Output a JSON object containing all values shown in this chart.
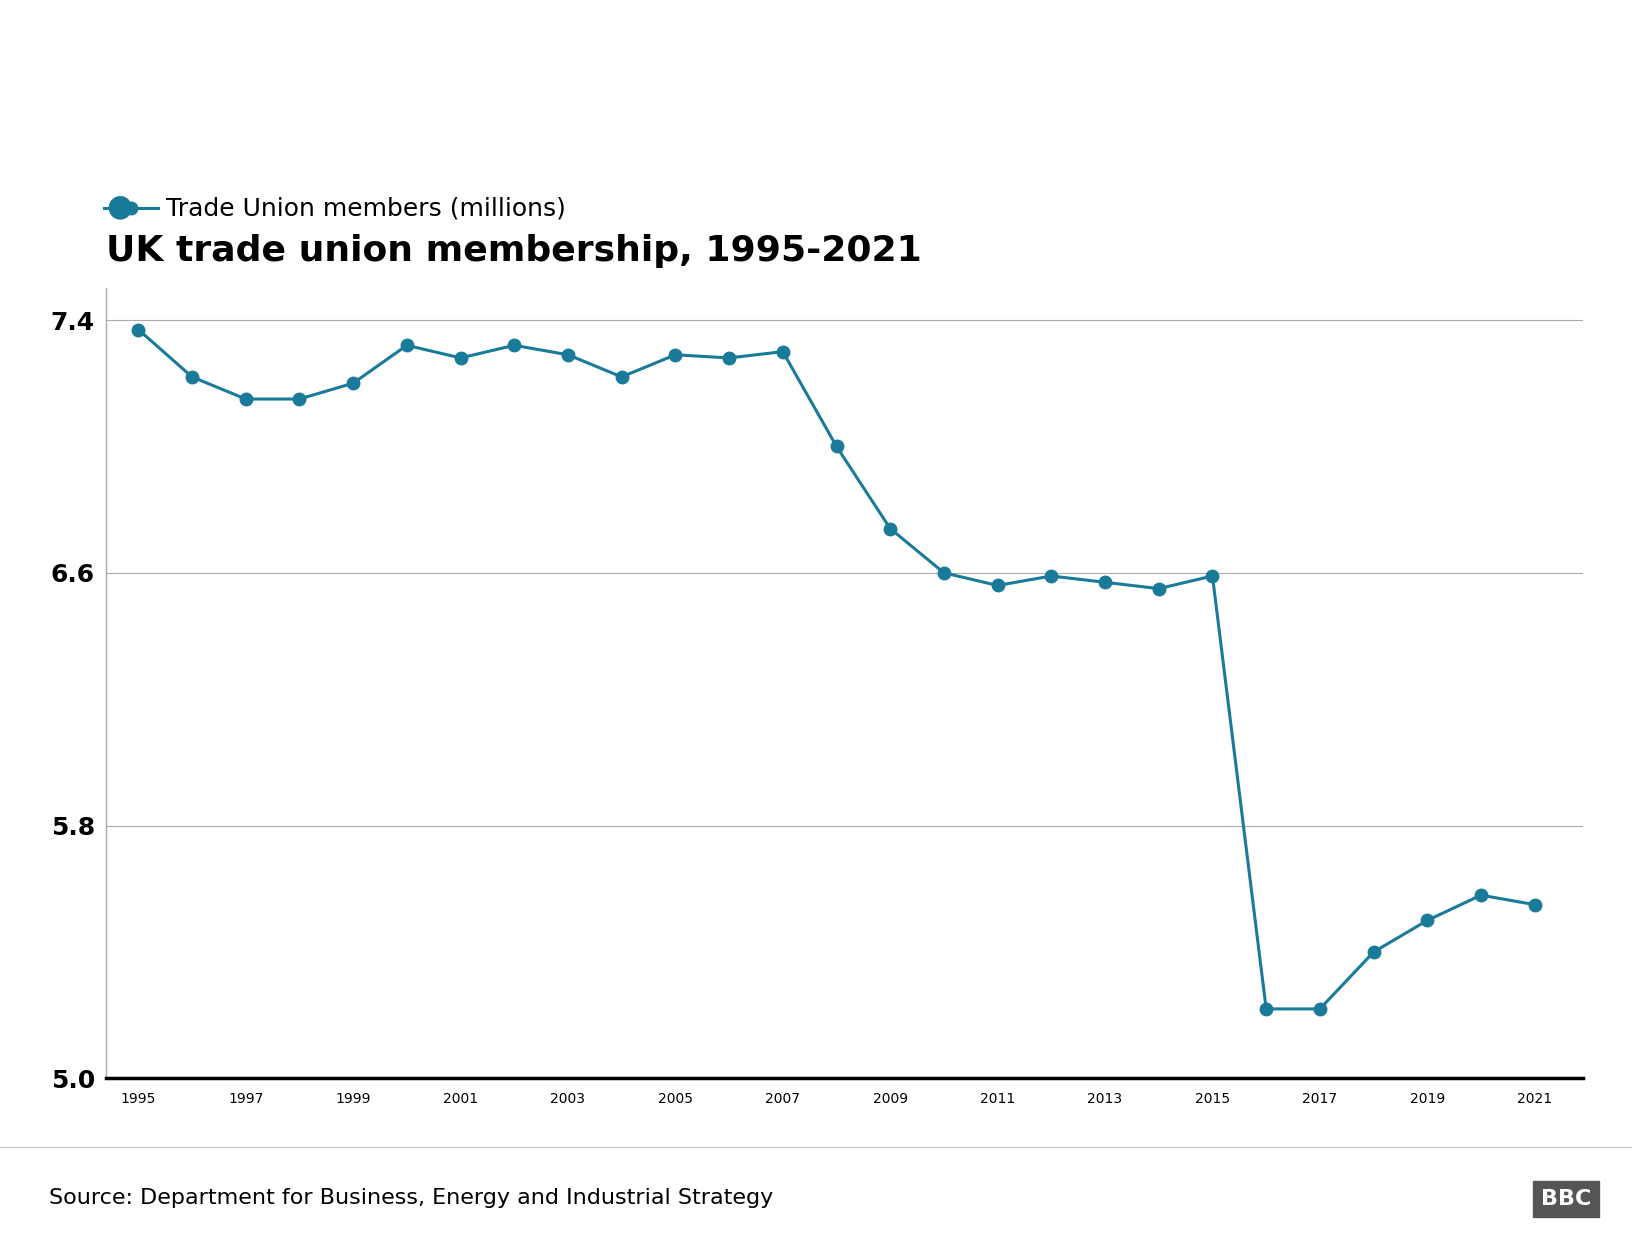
{
  "title": "UK trade union membership, 1995-2021",
  "legend_label": "Trade Union members (millions)",
  "source_text": "Source: Department for Business, Energy and Industrial Strategy",
  "bbc_text": "BBC",
  "line_color": "#1a7a99",
  "background_color": "#ffffff",
  "years": [
    1995,
    1996,
    1997,
    1998,
    1999,
    2000,
    2001,
    2002,
    2003,
    2004,
    2005,
    2006,
    2007,
    2008,
    2009,
    2010,
    2011,
    2012,
    2013,
    2014,
    2015,
    2016,
    2017,
    2018,
    2019,
    2020,
    2021
  ],
  "values": [
    7.37,
    7.22,
    7.15,
    7.15,
    7.2,
    7.32,
    7.28,
    7.32,
    7.29,
    7.22,
    7.29,
    7.28,
    7.3,
    7.0,
    6.74,
    6.6,
    6.56,
    6.59,
    6.57,
    6.55,
    6.59,
    5.22,
    5.22,
    5.4,
    5.5,
    5.58,
    5.55
  ],
  "ylim_min": 5.0,
  "ylim_max": 7.5,
  "ytick_positions": [
    5.0,
    5.8,
    6.6,
    7.4
  ],
  "ytick_labels": [
    "5.0",
    "5.8",
    "6.6",
    "7.4"
  ],
  "xtick_years": [
    1995,
    1997,
    1999,
    2001,
    2003,
    2005,
    2007,
    2009,
    2011,
    2013,
    2015,
    2017,
    2019,
    2021
  ],
  "title_fontsize": 26,
  "legend_fontsize": 18,
  "tick_fontsize": 18,
  "source_fontsize": 16,
  "marker_size": 9,
  "line_width": 2.2,
  "spine_color": "#aaaaaa",
  "tick_color": "#000000"
}
